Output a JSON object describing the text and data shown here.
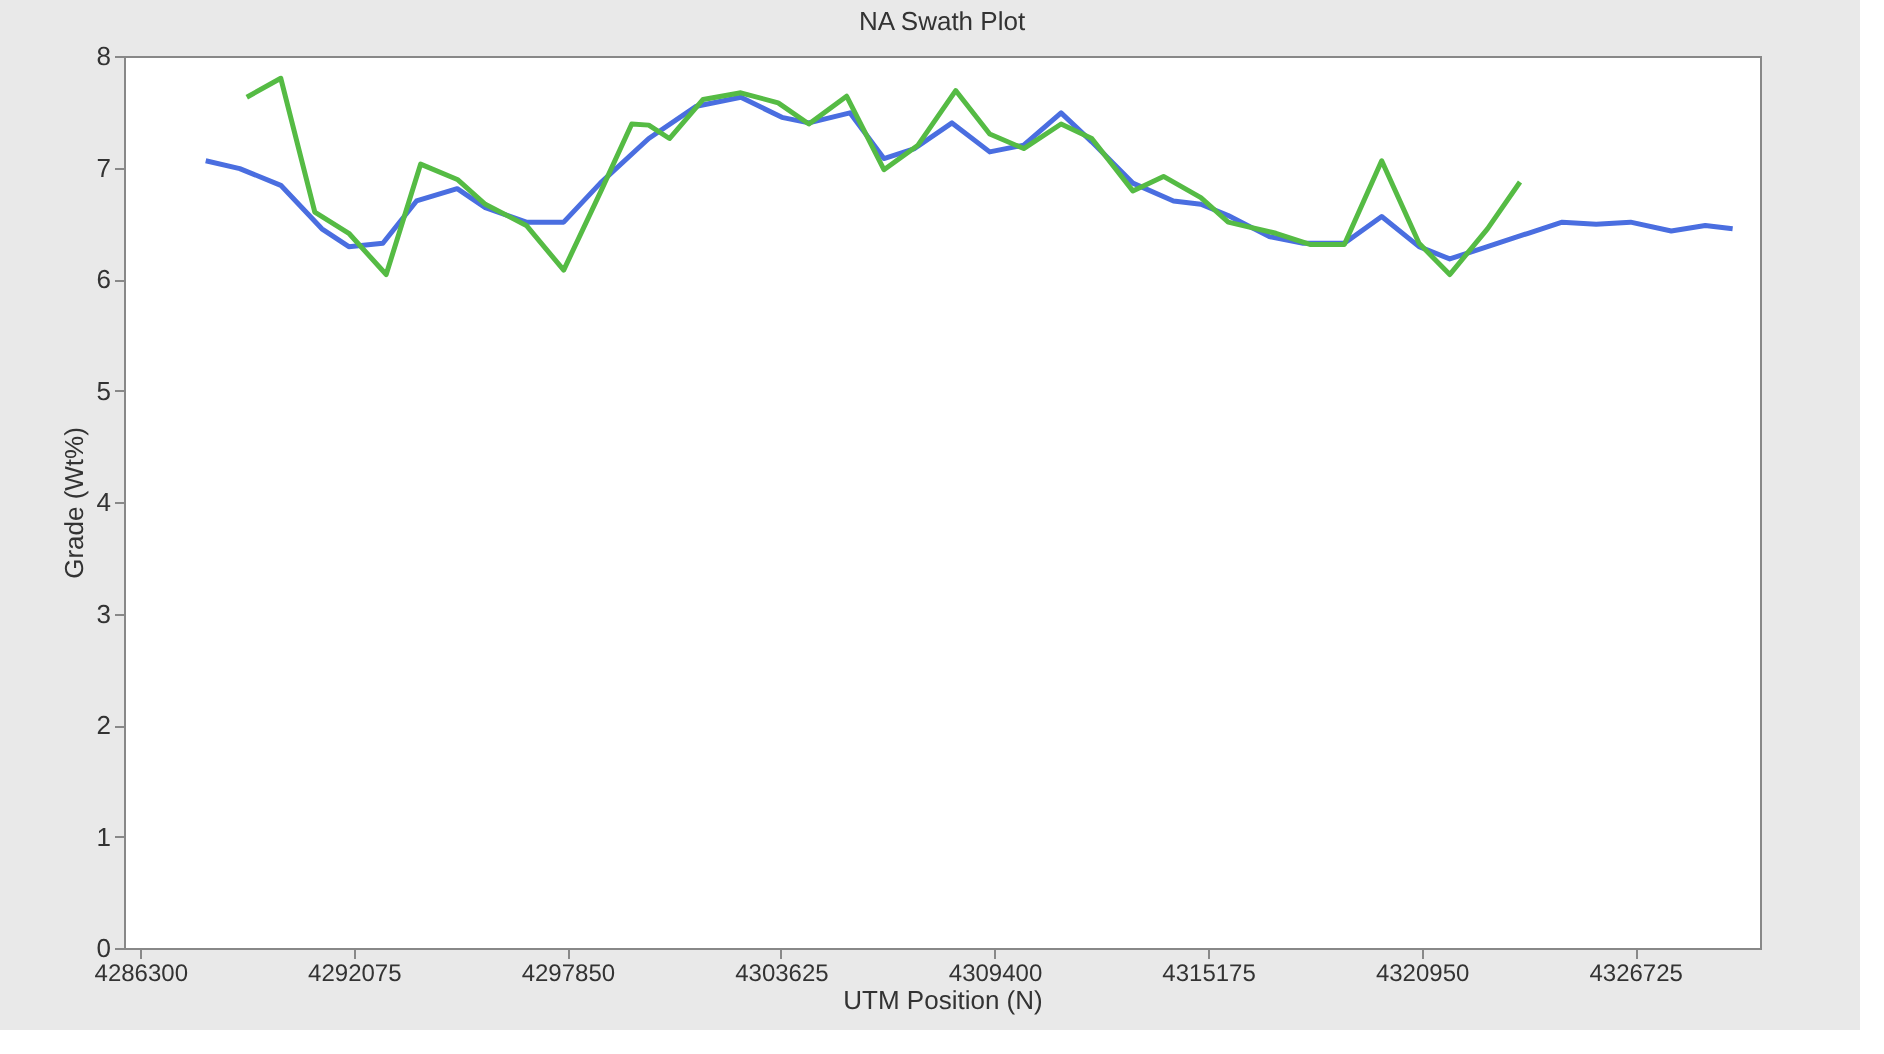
{
  "chart_data": {
    "type": "line",
    "title": "NA Swath Plot",
    "xlabel": "UTM Position (N)",
    "ylabel": "Grade (Wt%)",
    "xlim": [
      4285860,
      4330100
    ],
    "xticks": [
      4286300,
      4292075,
      4297850,
      4303625,
      4309400,
      4315175,
      4320950,
      4326725
    ],
    "ylim": [
      0,
      8
    ],
    "yticks": [
      0,
      1,
      2,
      3,
      4,
      5,
      6,
      7,
      8
    ],
    "grid": false,
    "marker": "none",
    "line_style": "solid",
    "series": [
      {
        "color": "#4a6ee0",
        "x": [
          4288070,
          4288990,
          4290100,
          4291210,
          4291940,
          4292860,
          4293770,
          4294870,
          4295630,
          4296740,
          4297750,
          4298740,
          4300050,
          4301340,
          4302540,
          4303650,
          4304380,
          4305490,
          4306410,
          4307240,
          4308250,
          4309270,
          4310190,
          4311200,
          4312030,
          4313140,
          4314240,
          4314980,
          4315720,
          4316830,
          4317750,
          4318860,
          4319870,
          4320880,
          4321710,
          4322730,
          4323830,
          4324750,
          4325670,
          4326600,
          4327700,
          4328620,
          4329360
        ],
        "values": [
          7.06,
          6.99,
          6.84,
          6.45,
          6.29,
          6.32,
          6.7,
          6.81,
          6.64,
          6.51,
          6.51,
          6.86,
          7.26,
          7.55,
          7.63,
          7.45,
          7.4,
          7.49,
          7.08,
          7.17,
          7.4,
          7.14,
          7.2,
          7.49,
          7.23,
          6.86,
          6.7,
          6.67,
          6.57,
          6.38,
          6.32,
          6.32,
          6.56,
          6.29,
          6.18,
          6.29,
          6.41,
          6.51,
          6.49,
          6.51,
          6.43,
          6.48,
          6.45
        ]
      },
      {
        "color": "#55bb44",
        "x": [
          4289180,
          4290100,
          4291020,
          4291940,
          4292950,
          4293880,
          4294890,
          4295630,
          4296740,
          4297750,
          4298760,
          4299590,
          4300050,
          4300610,
          4301520,
          4302540,
          4303550,
          4304380,
          4305400,
          4306410,
          4307330,
          4308350,
          4309270,
          4310190,
          4311200,
          4312030,
          4313140,
          4313970,
          4314980,
          4315720,
          4317010,
          4317930,
          4318860,
          4319870,
          4320880,
          4321710,
          4322730,
          4323610
        ],
        "values": [
          7.63,
          7.8,
          6.6,
          6.41,
          6.04,
          7.03,
          6.89,
          6.67,
          6.48,
          6.08,
          6.79,
          7.39,
          7.38,
          7.26,
          7.61,
          7.67,
          7.58,
          7.39,
          7.64,
          6.98,
          7.2,
          7.69,
          7.3,
          7.17,
          7.39,
          7.26,
          6.79,
          6.92,
          6.73,
          6.51,
          6.41,
          6.31,
          6.31,
          7.06,
          6.32,
          6.04,
          6.45,
          6.87
        ]
      }
    ]
  }
}
